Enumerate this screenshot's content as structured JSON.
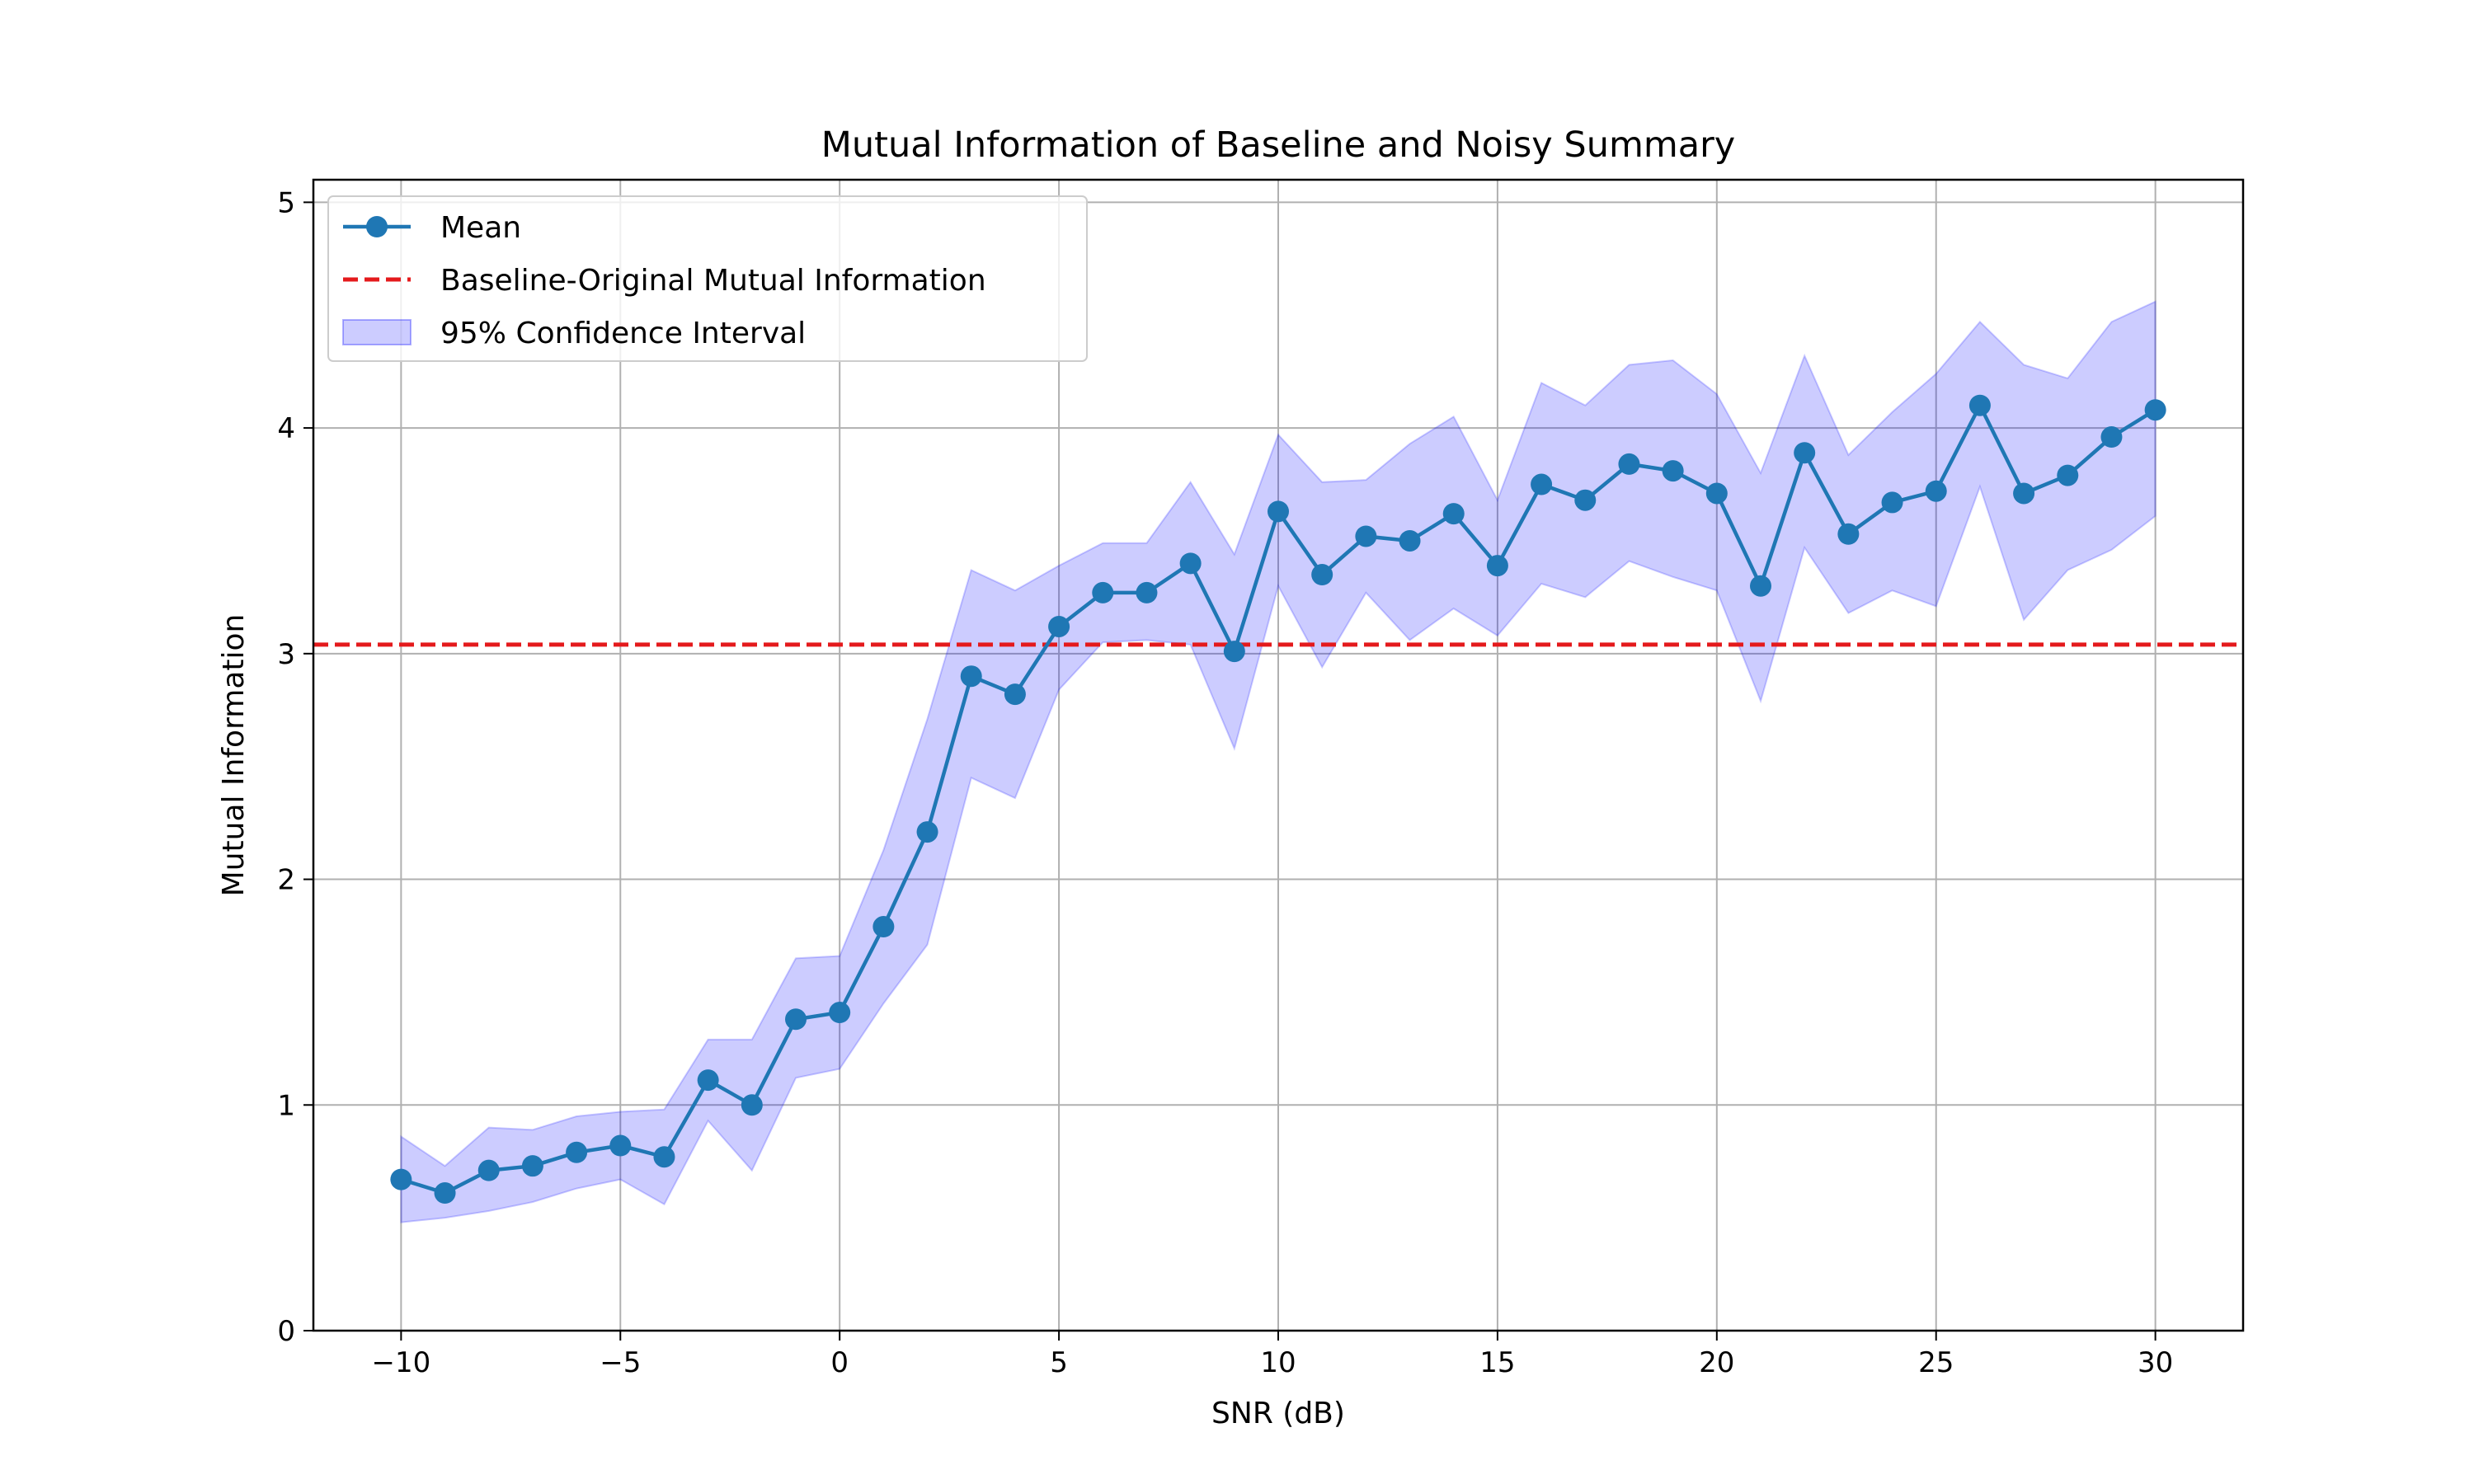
{
  "chart_data": {
    "type": "line",
    "title": "Mutual Information of Baseline and Noisy Summary",
    "xlabel": "SNR (dB)",
    "ylabel": "Mutual Information",
    "xlim": [
      -12,
      32
    ],
    "ylim": [
      0,
      5.1
    ],
    "xticks": [
      -10,
      -5,
      0,
      5,
      10,
      15,
      20,
      25,
      30
    ],
    "xtick_labels": [
      "−10",
      "−5",
      "0",
      "5",
      "10",
      "15",
      "20",
      "25",
      "30"
    ],
    "yticks": [
      0,
      1,
      2,
      3,
      4,
      5
    ],
    "ytick_labels": [
      "0",
      "1",
      "2",
      "3",
      "4",
      "5"
    ],
    "grid": true,
    "legend_position": "top-left",
    "x": [
      -10,
      -9,
      -8,
      -7,
      -6,
      -5,
      -4,
      -3,
      -2,
      -1,
      0,
      1,
      2,
      3,
      4,
      5,
      6,
      7,
      8,
      9,
      10,
      11,
      12,
      13,
      14,
      15,
      16,
      17,
      18,
      19,
      20,
      21,
      22,
      23,
      24,
      25,
      26,
      27,
      28,
      29,
      30
    ],
    "series": [
      {
        "name": "Mean",
        "kind": "line-marker",
        "color": "#1f77b4",
        "values": [
          0.67,
          0.61,
          0.71,
          0.73,
          0.79,
          0.82,
          0.77,
          1.11,
          1.0,
          1.38,
          1.41,
          1.79,
          2.21,
          2.9,
          2.82,
          3.12,
          3.27,
          3.27,
          3.4,
          3.01,
          3.63,
          3.35,
          3.52,
          3.5,
          3.62,
          3.39,
          3.75,
          3.68,
          3.84,
          3.81,
          3.71,
          3.3,
          3.89,
          3.53,
          3.67,
          3.72,
          4.1,
          3.71,
          3.79,
          3.96,
          4.08
        ]
      },
      {
        "name": "Baseline-Original Mutual Information",
        "kind": "hline",
        "color": "#e41a1c",
        "value": 3.04
      },
      {
        "name": "95% Confidence Interval",
        "kind": "band",
        "color": "#0000ff",
        "lower": [
          0.48,
          0.5,
          0.53,
          0.57,
          0.63,
          0.67,
          0.56,
          0.93,
          0.71,
          1.12,
          1.16,
          1.45,
          1.71,
          2.45,
          2.36,
          2.84,
          3.05,
          3.06,
          3.04,
          2.58,
          3.3,
          2.94,
          3.27,
          3.06,
          3.2,
          3.08,
          3.31,
          3.25,
          3.41,
          3.34,
          3.28,
          2.79,
          3.47,
          3.18,
          3.28,
          3.21,
          3.74,
          3.15,
          3.37,
          3.46,
          3.61
        ],
        "upper": [
          0.86,
          0.73,
          0.9,
          0.89,
          0.95,
          0.97,
          0.98,
          1.29,
          1.29,
          1.65,
          1.66,
          2.13,
          2.71,
          3.37,
          3.28,
          3.39,
          3.49,
          3.49,
          3.76,
          3.44,
          3.97,
          3.76,
          3.77,
          3.93,
          4.05,
          3.68,
          4.2,
          4.1,
          4.28,
          4.3,
          4.15,
          3.8,
          4.32,
          3.88,
          4.07,
          4.24,
          4.47,
          4.28,
          4.22,
          4.47,
          4.56
        ]
      }
    ]
  }
}
